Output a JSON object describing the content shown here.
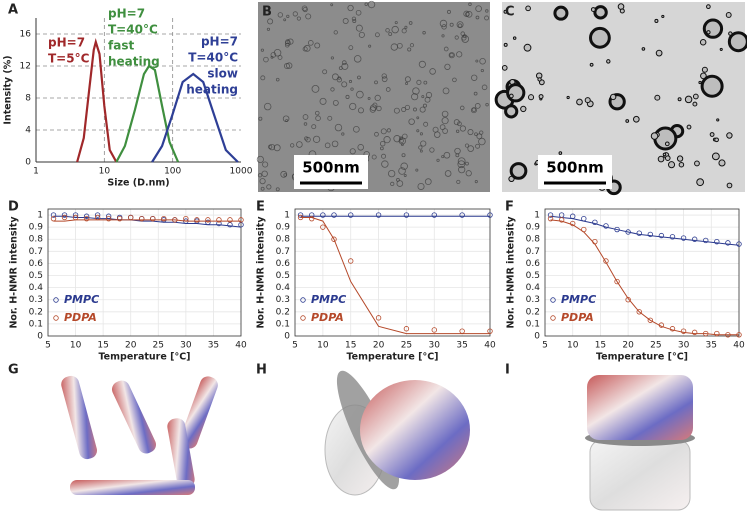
{
  "images": [
    {
      "panel": "B",
      "scale_bar": "500nm"
    },
    {
      "panel": "C",
      "scale_bar": "500nm"
    },
    {
      "panel": "G"
    },
    {
      "panel": "H"
    },
    {
      "panel": "I"
    }
  ],
  "chart_data": [
    {
      "type": "line",
      "panel": "A",
      "xscale": "log",
      "grid": true,
      "grid_style": "dashed",
      "frame": false,
      "xlabel": "Size (D.nm)",
      "ylabel": "Intensity (%)",
      "xlim": [
        1,
        1000
      ],
      "xticks": [
        1,
        10,
        100,
        1000
      ],
      "ylim": [
        0,
        18
      ],
      "yticks": [
        0,
        4,
        8,
        12,
        16
      ],
      "series": [
        {
          "color": "#a0282a",
          "x": [
            4,
            5,
            6,
            7,
            7.5,
            8.5,
            10,
            12,
            15
          ],
          "values": [
            0,
            3,
            9,
            14,
            15,
            13.5,
            7,
            1.5,
            0
          ]
        },
        {
          "color": "#3f8f3f",
          "x": [
            15,
            20,
            28,
            38,
            45,
            55,
            70,
            90,
            120
          ],
          "values": [
            0,
            2,
            6.5,
            11,
            12,
            11.5,
            7,
            2.5,
            0
          ]
        },
        {
          "color": "#2e3f96",
          "x": [
            50,
            70,
            100,
            140,
            200,
            280,
            400,
            600,
            900
          ],
          "values": [
            0,
            2,
            6,
            10,
            11,
            10,
            6,
            1.5,
            0
          ]
        }
      ],
      "annotations": [
        {
          "color": "#a0282a",
          "lines": [
            "pH=7",
            "T=5°C"
          ]
        },
        {
          "color": "#3f8f3f",
          "lines": [
            "pH=7",
            "T=40°C",
            "fast",
            "heating"
          ]
        },
        {
          "color": "#2e3f96",
          "lines": [
            "pH=7",
            "T=40°C",
            "slow",
            "heating"
          ]
        }
      ]
    },
    {
      "type": "scatter",
      "panel": "D",
      "grid": true,
      "grid_style": "solid",
      "frame": true,
      "legend": "lower left",
      "xlabel": "Temperature [°C]",
      "ylabel": "Nor. H-NMR intensity",
      "xlim": [
        5,
        40
      ],
      "xticks": [
        5,
        10,
        15,
        20,
        25,
        30,
        35,
        40
      ],
      "ylim": [
        0,
        1.05
      ],
      "yticks": [
        0,
        0.1,
        0.2,
        0.3,
        0.4,
        0.5,
        0.6,
        0.7,
        0.8,
        0.9,
        1
      ],
      "x": [
        6,
        8,
        10,
        12,
        14,
        16,
        18,
        20,
        22,
        24,
        26,
        28,
        30,
        32,
        34,
        36,
        38,
        40
      ],
      "series": [
        {
          "name": "PMPC",
          "color": "#2b3a8f",
          "values": [
            1.0,
            1.0,
            1.0,
            0.99,
            1.0,
            0.99,
            0.98,
            0.98,
            0.97,
            0.97,
            0.96,
            0.96,
            0.95,
            0.95,
            0.94,
            0.93,
            0.92,
            0.92
          ],
          "fit": [
            0.99,
            0.99,
            0.98,
            0.98,
            0.97,
            0.97,
            0.96,
            0.96,
            0.95,
            0.95,
            0.94,
            0.94,
            0.93,
            0.93,
            0.92,
            0.92,
            0.91,
            0.9
          ]
        },
        {
          "name": "PDPA",
          "color": "#b5492a",
          "values": [
            0.97,
            0.98,
            0.98,
            0.97,
            0.98,
            0.97,
            0.97,
            0.98,
            0.97,
            0.97,
            0.97,
            0.96,
            0.97,
            0.96,
            0.96,
            0.96,
            0.96,
            0.96
          ],
          "fit": [
            0.95,
            0.95,
            0.96,
            0.96,
            0.96,
            0.96,
            0.96,
            0.96,
            0.96,
            0.96,
            0.96,
            0.96,
            0.95,
            0.95,
            0.95,
            0.95,
            0.95,
            0.95
          ]
        }
      ]
    },
    {
      "type": "scatter",
      "panel": "E",
      "grid": true,
      "grid_style": "solid",
      "frame": true,
      "legend": "lower left",
      "xlabel": "Temperature [°C]",
      "ylabel": "Nor. H-NMR intensity",
      "xlim": [
        5,
        40
      ],
      "xticks": [
        5,
        10,
        15,
        20,
        25,
        30,
        35,
        40
      ],
      "ylim": [
        0,
        1.05
      ],
      "yticks": [
        0,
        0.1,
        0.2,
        0.3,
        0.4,
        0.5,
        0.6,
        0.7,
        0.8,
        0.9,
        1
      ],
      "x": [
        6,
        8,
        10,
        12,
        15,
        20,
        25,
        30,
        35,
        40
      ],
      "series": [
        {
          "name": "PMPC",
          "color": "#2b3a8f",
          "values": [
            1,
            1,
            1,
            1,
            1,
            1,
            1,
            1,
            1,
            1
          ],
          "fit": [
            0.99,
            0.99,
            0.99,
            0.99,
            0.99,
            0.99,
            0.99,
            0.99,
            0.99,
            0.99
          ]
        },
        {
          "name": "PDPA",
          "color": "#b5492a",
          "values": [
            0.98,
            0.97,
            0.9,
            0.8,
            0.62,
            0.15,
            0.06,
            0.05,
            0.04,
            0.04
          ],
          "fit": [
            0.98,
            0.98,
            0.95,
            0.8,
            0.45,
            0.08,
            0.02,
            0.02,
            0.02,
            0.02
          ]
        }
      ]
    },
    {
      "type": "scatter",
      "panel": "F",
      "grid": true,
      "grid_style": "solid",
      "frame": true,
      "legend": "lower left",
      "xlabel": "Temperature [°C]",
      "ylabel": "Nor. H-NMR intensity",
      "xlim": [
        5,
        40
      ],
      "xticks": [
        5,
        10,
        15,
        20,
        25,
        30,
        35,
        40
      ],
      "ylim": [
        0,
        1.05
      ],
      "yticks": [
        0,
        0.1,
        0.2,
        0.3,
        0.4,
        0.5,
        0.6,
        0.7,
        0.8,
        0.9,
        1
      ],
      "x": [
        6,
        8,
        10,
        12,
        14,
        16,
        18,
        20,
        22,
        24,
        26,
        28,
        30,
        32,
        34,
        36,
        38,
        40
      ],
      "series": [
        {
          "name": "PMPC",
          "color": "#2b3a8f",
          "values": [
            1,
            1,
            0.99,
            0.97,
            0.94,
            0.91,
            0.88,
            0.86,
            0.85,
            0.84,
            0.83,
            0.82,
            0.81,
            0.8,
            0.79,
            0.78,
            0.77,
            0.76
          ],
          "fit": [
            0.99,
            0.98,
            0.97,
            0.95,
            0.93,
            0.9,
            0.88,
            0.86,
            0.84,
            0.83,
            0.82,
            0.81,
            0.8,
            0.79,
            0.78,
            0.77,
            0.76,
            0.75
          ]
        },
        {
          "name": "PDPA",
          "color": "#b5492a",
          "values": [
            0.97,
            0.96,
            0.93,
            0.88,
            0.78,
            0.62,
            0.45,
            0.3,
            0.2,
            0.13,
            0.09,
            0.06,
            0.04,
            0.03,
            0.02,
            0.02,
            0.01,
            0.01
          ],
          "fit": [
            0.96,
            0.95,
            0.92,
            0.86,
            0.76,
            0.61,
            0.45,
            0.31,
            0.2,
            0.13,
            0.08,
            0.05,
            0.03,
            0.02,
            0.02,
            0.01,
            0.01,
            0.01
          ]
        }
      ]
    }
  ]
}
